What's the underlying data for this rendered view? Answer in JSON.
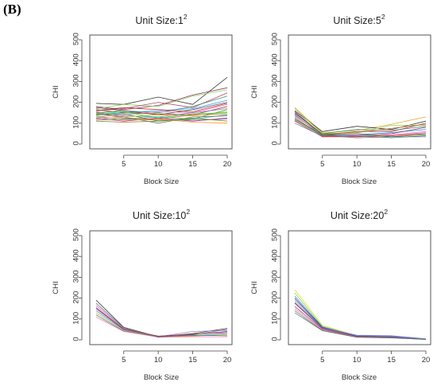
{
  "panel_label": "(B)",
  "chart_data": [
    {
      "type": "line",
      "title": "Unit Size:1",
      "title_superscript": "2",
      "xlabel": "Block Size",
      "ylabel": "CHI",
      "x": [
        1,
        5,
        10,
        15,
        20
      ],
      "x_ticks": [
        5,
        10,
        15,
        20
      ],
      "y_ticks": [
        0,
        100,
        200,
        300,
        400,
        500
      ],
      "xlim": [
        1,
        20
      ],
      "ylim": [
        0,
        500
      ],
      "series": [
        {
          "color": "#222222",
          "values": [
            195,
            190,
            225,
            190,
            320
          ]
        },
        {
          "color": "#8b1a4a",
          "values": [
            180,
            165,
            185,
            235,
            270
          ]
        },
        {
          "color": "#7ad14a",
          "values": [
            170,
            190,
            180,
            230,
            260
          ]
        },
        {
          "color": "#b03060",
          "values": [
            160,
            170,
            200,
            175,
            245
          ]
        },
        {
          "color": "#2e8b57",
          "values": [
            150,
            160,
            150,
            180,
            230
          ]
        },
        {
          "color": "#1e90ff",
          "values": [
            140,
            150,
            160,
            170,
            210
          ]
        },
        {
          "color": "#444444",
          "values": [
            175,
            160,
            140,
            165,
            200
          ]
        },
        {
          "color": "#ff69b4",
          "values": [
            130,
            140,
            155,
            150,
            190
          ]
        },
        {
          "color": "#8b4513",
          "values": [
            165,
            150,
            145,
            140,
            180
          ]
        },
        {
          "color": "#9370db",
          "values": [
            155,
            135,
            130,
            150,
            170
          ]
        },
        {
          "color": "#00a000",
          "values": [
            140,
            145,
            110,
            120,
            165
          ]
        },
        {
          "color": "#daa520",
          "values": [
            120,
            130,
            140,
            135,
            155
          ]
        },
        {
          "color": "#d2691e",
          "values": [
            150,
            125,
            120,
            140,
            145
          ]
        },
        {
          "color": "#20b2aa",
          "values": [
            130,
            120,
            130,
            120,
            140
          ]
        },
        {
          "color": "#696969",
          "values": [
            145,
            130,
            100,
            130,
            135
          ]
        },
        {
          "color": "#c71585",
          "values": [
            125,
            110,
            125,
            110,
            125
          ]
        },
        {
          "color": "#4682b4",
          "values": [
            115,
            120,
            115,
            115,
            120
          ]
        },
        {
          "color": "#ff8c00",
          "values": [
            135,
            115,
            120,
            105,
            100
          ]
        },
        {
          "color": "#808000",
          "values": [
            110,
            105,
            110,
            125,
            110
          ]
        },
        {
          "color": "#b22222",
          "values": [
            160,
            175,
            165,
            155,
            195
          ]
        },
        {
          "color": "#32cd32",
          "values": [
            145,
            155,
            125,
            145,
            150
          ]
        }
      ]
    },
    {
      "type": "line",
      "title": "Unit Size:5",
      "title_superscript": "2",
      "xlabel": "Block Size",
      "ylabel": "CHI",
      "x": [
        1,
        5,
        10,
        15,
        20
      ],
      "x_ticks": [
        5,
        10,
        15,
        20
      ],
      "y_ticks": [
        0,
        100,
        200,
        300,
        400,
        500
      ],
      "xlim": [
        1,
        20
      ],
      "ylim": [
        0,
        500
      ],
      "series": [
        {
          "color": "#daa520",
          "values": [
            175,
            55,
            65,
            95,
            130
          ]
        },
        {
          "color": "#222222",
          "values": [
            160,
            60,
            85,
            70,
            110
          ]
        },
        {
          "color": "#7ad14a",
          "values": [
            170,
            50,
            55,
            90,
            90
          ]
        },
        {
          "color": "#b03060",
          "values": [
            150,
            45,
            60,
            60,
            100
          ]
        },
        {
          "color": "#2e8b57",
          "values": [
            145,
            50,
            70,
            65,
            85
          ]
        },
        {
          "color": "#1e90ff",
          "values": [
            140,
            40,
            45,
            55,
            70
          ]
        },
        {
          "color": "#8b1a4a",
          "values": [
            155,
            45,
            40,
            50,
            80
          ]
        },
        {
          "color": "#ff69b4",
          "values": [
            130,
            35,
            45,
            45,
            60
          ]
        },
        {
          "color": "#9370db",
          "values": [
            125,
            40,
            40,
            40,
            55
          ]
        },
        {
          "color": "#ff0000",
          "values": [
            110,
            35,
            35,
            40,
            50
          ]
        },
        {
          "color": "#00a000",
          "values": [
            120,
            45,
            50,
            35,
            45
          ]
        },
        {
          "color": "#4682b4",
          "values": [
            100,
            38,
            38,
            30,
            40
          ]
        },
        {
          "color": "#696969",
          "values": [
            115,
            42,
            30,
            35,
            35
          ]
        },
        {
          "color": "#d2691e",
          "values": [
            135,
            48,
            55,
            75,
            95
          ]
        }
      ]
    },
    {
      "type": "line",
      "title": "Unit Size:10",
      "title_superscript": "2",
      "xlabel": "Block Size",
      "ylabel": "CHI",
      "x": [
        1,
        5,
        10,
        15,
        20
      ],
      "x_ticks": [
        5,
        10,
        15,
        20
      ],
      "y_ticks": [
        0,
        100,
        200,
        300,
        400,
        500
      ],
      "xlim": [
        1,
        20
      ],
      "ylim": [
        0,
        500
      ],
      "series": [
        {
          "color": "#222222",
          "values": [
            190,
            60,
            15,
            30,
            55
          ]
        },
        {
          "color": "#9370db",
          "values": [
            165,
            55,
            15,
            40,
            45
          ]
        },
        {
          "color": "#8b1a4a",
          "values": [
            150,
            50,
            18,
            25,
            40
          ]
        },
        {
          "color": "#1e90ff",
          "values": [
            140,
            48,
            12,
            20,
            30
          ]
        },
        {
          "color": "#daa520",
          "values": [
            130,
            45,
            14,
            18,
            25
          ]
        },
        {
          "color": "#2e8b57",
          "values": [
            120,
            42,
            16,
            22,
            20
          ]
        },
        {
          "color": "#ff69b4",
          "values": [
            110,
            40,
            13,
            15,
            15
          ]
        },
        {
          "color": "#b03060",
          "values": [
            155,
            52,
            17,
            28,
            35
          ]
        },
        {
          "color": "#696969",
          "values": [
            175,
            58,
            14,
            24,
            50
          ]
        }
      ]
    },
    {
      "type": "line",
      "title": "Unit Size:20",
      "title_superscript": "2",
      "xlabel": "Block Size",
      "ylabel": "CHI",
      "x": [
        1,
        5,
        10,
        15,
        20
      ],
      "x_ticks": [
        5,
        10,
        15,
        20
      ],
      "y_ticks": [
        0,
        100,
        200,
        300,
        400,
        500
      ],
      "xlim": [
        1,
        20
      ],
      "ylim": [
        0,
        500
      ],
      "series": [
        {
          "color": "#e6d800",
          "values": [
            240,
            70,
            20,
            12,
            3
          ]
        },
        {
          "color": "#7ad14a",
          "values": [
            225,
            65,
            18,
            15,
            4
          ]
        },
        {
          "color": "#1e90ff",
          "values": [
            210,
            62,
            20,
            18,
            4
          ]
        },
        {
          "color": "#222222",
          "values": [
            200,
            60,
            17,
            14,
            3
          ]
        },
        {
          "color": "#9370db",
          "values": [
            190,
            58,
            22,
            20,
            5
          ]
        },
        {
          "color": "#8b1a4a",
          "values": [
            175,
            55,
            16,
            12,
            3
          ]
        },
        {
          "color": "#b03060",
          "values": [
            160,
            52,
            15,
            13,
            3
          ]
        },
        {
          "color": "#ff69b4",
          "values": [
            150,
            48,
            14,
            11,
            2
          ]
        },
        {
          "color": "#2e8b57",
          "values": [
            140,
            45,
            13,
            10,
            2
          ]
        },
        {
          "color": "#696969",
          "values": [
            130,
            44,
            12,
            9,
            2
          ]
        },
        {
          "color": "#4682b4",
          "values": [
            180,
            57,
            19,
            16,
            4
          ]
        }
      ]
    }
  ]
}
